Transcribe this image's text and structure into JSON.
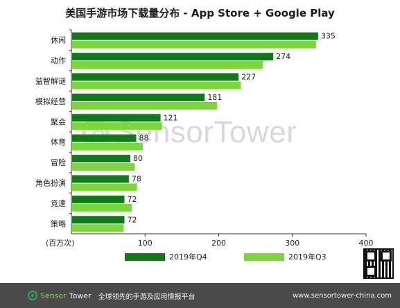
{
  "title": "美国手游市场下载量分布 - App Store + Google Play",
  "unit_label": "(百万次)",
  "colors": {
    "q4": "#0f7a17",
    "q3": "#7cd83a",
    "axis": "#333333",
    "grid": "#c8c8c8"
  },
  "chart_data": {
    "type": "bar",
    "orientation": "horizontal",
    "title": "美国手游市场下载量分布 - App Store + Google Play",
    "xlabel": "(百万次)",
    "ylabel": "",
    "xlim": [
      0,
      400
    ],
    "xticks": [
      "100",
      "200",
      "300",
      "400"
    ],
    "grid": false,
    "legend_position": "bottom",
    "categories": [
      "休闲",
      "动作",
      "益智解谜",
      "模拟经营",
      "聚会",
      "体育",
      "冒险",
      "角色扮演",
      "竞速",
      "策略"
    ],
    "series": [
      {
        "name": "2019年Q4",
        "values": [
          335,
          274,
          227,
          181,
          121,
          88,
          80,
          78,
          72,
          72
        ]
      },
      {
        "name": "2019年Q3",
        "values": [
          332,
          260,
          230,
          198,
          123,
          97,
          86,
          89,
          82,
          71
        ]
      }
    ],
    "data_labels": [
      "335",
      "274",
      "227",
      "181",
      "121",
      "88",
      "80",
      "78",
      "72",
      "72"
    ]
  },
  "watermark": "SensorTower",
  "footer": {
    "brand_part1": "Sensor",
    "brand_part2": "Tower",
    "tagline": "全球领先的手游及应用情报平台",
    "url": "www.sensortower-china.com"
  }
}
